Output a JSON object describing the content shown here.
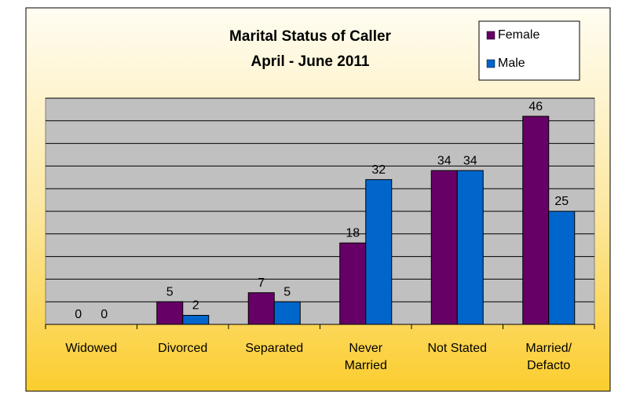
{
  "chart_data": {
    "type": "bar",
    "title": "Marital Status of Caller",
    "subtitle": "April - June 2011",
    "categories": [
      "Widowed",
      "Divorced",
      "Separated",
      "Never\nMarried",
      "Not Stated",
      "Married/\nDefacto"
    ],
    "series": [
      {
        "name": "Female",
        "color": "#660066",
        "values": [
          0,
          5,
          7,
          18,
          34,
          46
        ]
      },
      {
        "name": "Male",
        "color": "#0066cc",
        "values": [
          0,
          2,
          5,
          32,
          34,
          25
        ]
      }
    ],
    "ylim": [
      0,
      50
    ],
    "yticks": [
      0,
      5,
      10,
      15,
      20,
      25,
      30,
      35,
      40,
      45,
      50
    ],
    "grid": true,
    "legend": "top-right"
  }
}
